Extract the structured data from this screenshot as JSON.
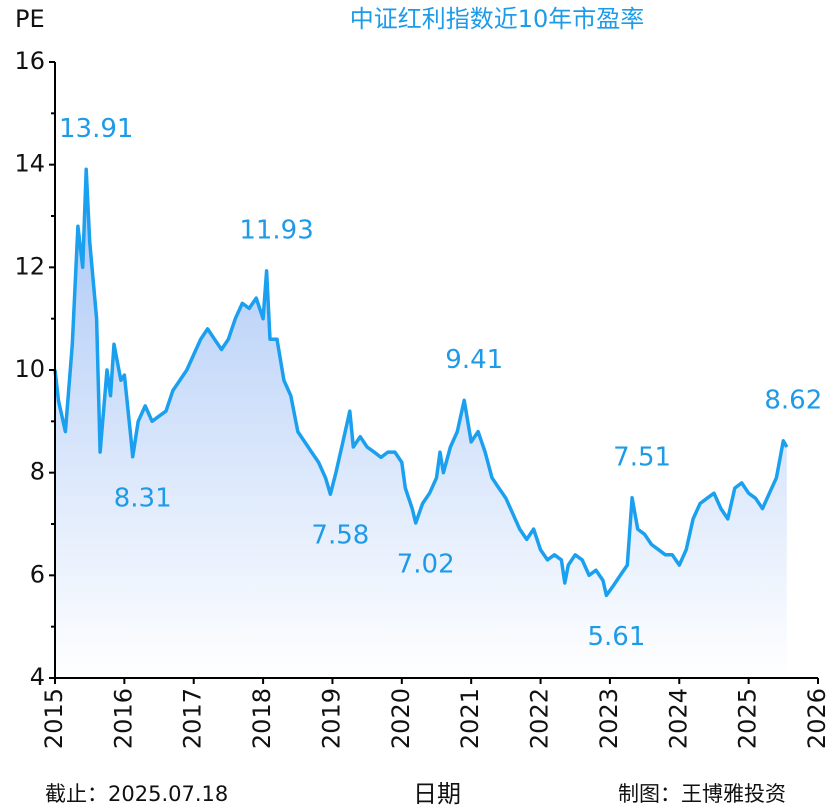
{
  "chart_data": {
    "type": "area",
    "title": "中证红利指数近10年市盈率",
    "y_label": "PE",
    "x_label": "日期",
    "footer_left": "截止：2025.07.18",
    "footer_right": "制图：王博雅投资",
    "color": "#1aa0ef",
    "fill_top": "#a8c6f6",
    "fill_bottom": "#ffffff",
    "xlim": [
      2015,
      2026
    ],
    "xticks": [
      2015,
      2016,
      2017,
      2018,
      2019,
      2020,
      2021,
      2022,
      2023,
      2024,
      2025,
      2026
    ],
    "ylim": [
      4,
      16
    ],
    "yticks": [
      4,
      6,
      8,
      10,
      12,
      14,
      16
    ],
    "yminor_ticks": [
      5,
      7,
      9,
      11,
      13,
      15
    ],
    "x": [
      2015.0,
      2015.05,
      2015.15,
      2015.25,
      2015.33,
      2015.4,
      2015.45,
      2015.5,
      2015.6,
      2015.65,
      2015.75,
      2015.8,
      2015.85,
      2015.95,
      2016.0,
      2016.1,
      2016.12,
      2016.2,
      2016.3,
      2016.4,
      2016.5,
      2016.6,
      2016.7,
      2016.8,
      2016.9,
      2017.0,
      2017.1,
      2017.2,
      2017.3,
      2017.4,
      2017.5,
      2017.6,
      2017.7,
      2017.8,
      2017.9,
      2018.0,
      2018.05,
      2018.1,
      2018.2,
      2018.3,
      2018.4,
      2018.5,
      2018.6,
      2018.7,
      2018.8,
      2018.9,
      2018.97,
      2019.05,
      2019.15,
      2019.25,
      2019.3,
      2019.4,
      2019.5,
      2019.6,
      2019.7,
      2019.8,
      2019.9,
      2020.0,
      2020.05,
      2020.15,
      2020.2,
      2020.3,
      2020.4,
      2020.5,
      2020.55,
      2020.6,
      2020.7,
      2020.8,
      2020.9,
      2021.0,
      2021.1,
      2021.2,
      2021.3,
      2021.4,
      2021.5,
      2021.6,
      2021.7,
      2021.8,
      2021.9,
      2022.0,
      2022.1,
      2022.2,
      2022.3,
      2022.35,
      2022.4,
      2022.5,
      2022.6,
      2022.7,
      2022.8,
      2022.9,
      2022.95,
      2023.05,
      2023.15,
      2023.25,
      2023.32,
      2023.4,
      2023.5,
      2023.6,
      2023.7,
      2023.8,
      2023.9,
      2024.0,
      2024.1,
      2024.2,
      2024.3,
      2024.4,
      2024.5,
      2024.6,
      2024.7,
      2024.8,
      2024.9,
      2025.0,
      2025.1,
      2025.2,
      2025.3,
      2025.4,
      2025.5,
      2025.55
    ],
    "values": [
      10.0,
      9.4,
      8.8,
      10.5,
      12.8,
      12.0,
      13.91,
      12.5,
      11.0,
      8.4,
      10.0,
      9.5,
      10.5,
      9.8,
      9.9,
      8.6,
      8.31,
      9.0,
      9.3,
      9.0,
      9.1,
      9.2,
      9.6,
      9.8,
      10.0,
      10.3,
      10.6,
      10.8,
      10.6,
      10.4,
      10.6,
      11.0,
      11.3,
      11.2,
      11.4,
      11.0,
      11.93,
      10.6,
      10.6,
      9.8,
      9.5,
      8.8,
      8.6,
      8.4,
      8.2,
      7.9,
      7.58,
      8.0,
      8.6,
      9.2,
      8.5,
      8.7,
      8.5,
      8.4,
      8.3,
      8.4,
      8.4,
      8.2,
      7.7,
      7.3,
      7.02,
      7.4,
      7.6,
      7.9,
      8.4,
      8.0,
      8.5,
      8.8,
      9.41,
      8.6,
      8.8,
      8.4,
      7.9,
      7.7,
      7.5,
      7.2,
      6.9,
      6.7,
      6.9,
      6.5,
      6.3,
      6.4,
      6.3,
      5.85,
      6.2,
      6.4,
      6.3,
      6.0,
      6.1,
      5.9,
      5.61,
      5.8,
      6.0,
      6.2,
      7.51,
      6.9,
      6.8,
      6.6,
      6.5,
      6.4,
      6.4,
      6.2,
      6.5,
      7.1,
      7.4,
      7.5,
      7.6,
      7.3,
      7.1,
      7.7,
      7.8,
      7.6,
      7.5,
      7.3,
      7.6,
      7.9,
      8.62,
      8.5
    ],
    "annotations": [
      {
        "value": 13.91,
        "x": 2015.45,
        "position": "above"
      },
      {
        "value": 8.31,
        "x": 2016.12,
        "position": "below"
      },
      {
        "value": 11.93,
        "x": 2018.05,
        "position": "above"
      },
      {
        "value": 7.58,
        "x": 2018.97,
        "position": "below"
      },
      {
        "value": 7.02,
        "x": 2020.2,
        "position": "below"
      },
      {
        "value": 9.41,
        "x": 2020.9,
        "position": "above"
      },
      {
        "value": 5.61,
        "x": 2022.95,
        "position": "below"
      },
      {
        "value": 7.51,
        "x": 2023.32,
        "position": "above"
      },
      {
        "value": 8.62,
        "x": 2025.5,
        "position": "above"
      }
    ]
  }
}
